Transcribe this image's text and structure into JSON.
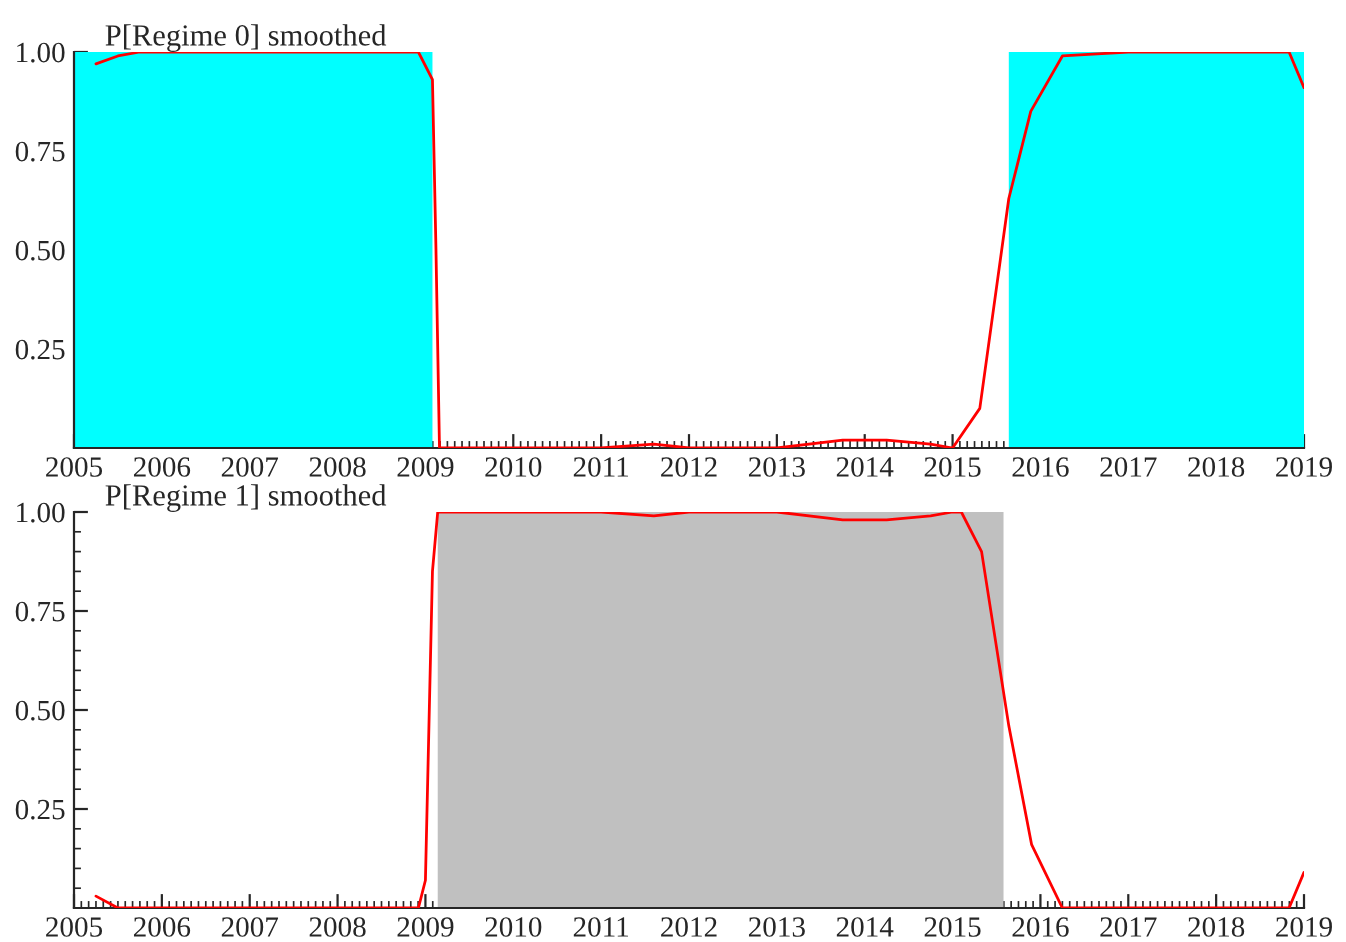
{
  "chart_data": [
    {
      "type": "line",
      "title": "P[Regime 0] smoothed",
      "series": [
        {
          "color": "#ff0000",
          "x": [
            2005.25,
            2005.5,
            2005.75,
            2006.5,
            2007.5,
            2008.5,
            2008.92,
            2009.08,
            2009.12,
            2009.16,
            2010.0,
            2011.0,
            2011.6,
            2012.0,
            2013.0,
            2013.75,
            2014.25,
            2014.75,
            2015.0,
            2015.31,
            2015.64,
            2015.89,
            2016.25,
            2017.0,
            2018.0,
            2018.83,
            2019.0
          ],
          "values": [
            0.97,
            0.99,
            1.0,
            1.0,
            1.0,
            1.0,
            1.0,
            0.93,
            0.5,
            0.0,
            0.0,
            0.0,
            0.01,
            0.0,
            0.0,
            0.02,
            0.02,
            0.01,
            0.0,
            0.1,
            0.63,
            0.85,
            0.99,
            1.0,
            1.0,
            1.0,
            0.91
          ]
        }
      ],
      "bands": [
        {
          "axis": "x",
          "from": 2005,
          "to": 2009.08,
          "color": "#00ffff"
        },
        {
          "axis": "x",
          "from": 2015.64,
          "to": 2019,
          "color": "#00ffff"
        }
      ],
      "xlim": [
        2005,
        2019
      ],
      "xticks": [
        2005,
        2006,
        2007,
        2008,
        2009,
        2010,
        2011,
        2012,
        2013,
        2014,
        2015,
        2016,
        2017,
        2018,
        2019
      ],
      "ylim": [
        0,
        1
      ],
      "yticks": [
        {
          "value": 0.25,
          "label": "0.25"
        },
        {
          "value": 0.5,
          "label": "0.50"
        },
        {
          "value": 0.75,
          "label": "0.75"
        },
        {
          "value": 1.0,
          "label": "1.00"
        }
      ],
      "grid": false,
      "legend": false
    },
    {
      "type": "line",
      "title": "P[Regime 1] smoothed",
      "series": [
        {
          "color": "#ff0000",
          "x": [
            2005.25,
            2005.5,
            2006.5,
            2007.5,
            2008.5,
            2008.92,
            2009.0,
            2009.08,
            2009.14,
            2010.0,
            2011.0,
            2011.6,
            2012.0,
            2013.0,
            2013.75,
            2014.25,
            2014.75,
            2015.0,
            2015.1,
            2015.33,
            2015.64,
            2015.9,
            2016.25,
            2017.0,
            2018.0,
            2018.83,
            2019.0
          ],
          "values": [
            0.03,
            0.0,
            0.0,
            0.0,
            0.0,
            0.0,
            0.07,
            0.85,
            1.0,
            1.0,
            1.0,
            0.99,
            1.0,
            1.0,
            0.98,
            0.98,
            0.99,
            1.0,
            1.0,
            0.9,
            0.46,
            0.16,
            0.0,
            0.0,
            0.0,
            0.0,
            0.09
          ]
        }
      ],
      "bands": [
        {
          "axis": "x",
          "from": 2009.14,
          "to": 2015.58,
          "color": "#c0c0c0"
        }
      ],
      "xlim": [
        2005,
        2019
      ],
      "xticks": [
        2005,
        2006,
        2007,
        2008,
        2009,
        2010,
        2011,
        2012,
        2013,
        2014,
        2015,
        2016,
        2017,
        2018,
        2019
      ],
      "ylim": [
        0,
        1
      ],
      "yticks": [
        {
          "value": 0.25,
          "label": "0.25"
        },
        {
          "value": 0.5,
          "label": "0.50"
        },
        {
          "value": 0.75,
          "label": "0.75"
        },
        {
          "value": 1.0,
          "label": "1.00"
        }
      ],
      "grid": false,
      "legend": false
    }
  ]
}
